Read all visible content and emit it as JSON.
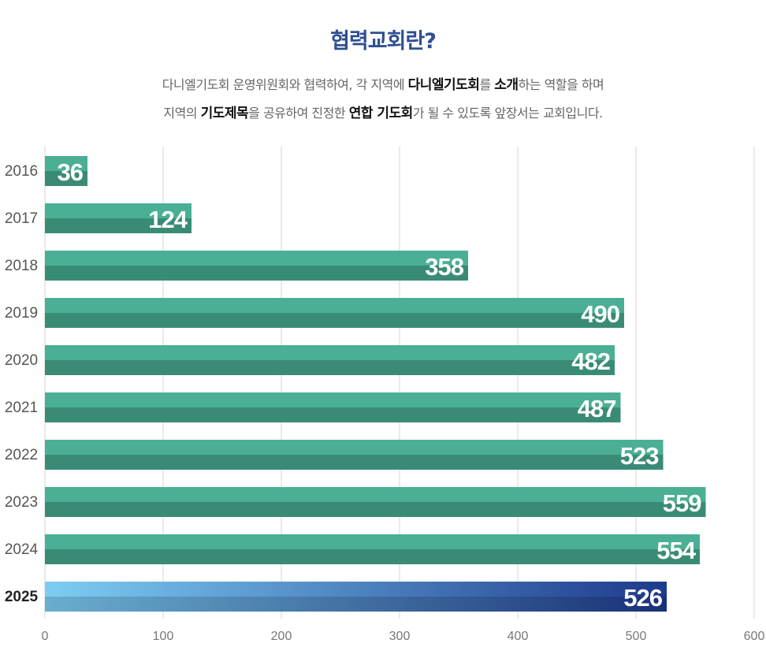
{
  "header": {
    "title": "협력교회란?",
    "line1": {
      "p1": "다니엘기도회 운영위원회와 협력하여, 각 지역에 ",
      "b1": "다니엘기도회",
      "p2": "를 ",
      "b2": "소개",
      "p3": "하는 역할을 하며"
    },
    "line2": {
      "p1": "지역의 ",
      "b1": "기도제목",
      "p2": "을 공유하여 진정한 ",
      "b2": "연합 기도회",
      "p3": "가 될 수 있도록 앞장서는 교회입니다."
    }
  },
  "chart_data": {
    "type": "bar",
    "orientation": "horizontal",
    "categories": [
      "2016",
      "2017",
      "2018",
      "2019",
      "2020",
      "2021",
      "2022",
      "2023",
      "2024",
      "2025"
    ],
    "values": [
      36,
      124,
      358,
      490,
      482,
      487,
      523,
      559,
      554,
      526
    ],
    "xlim": [
      0,
      600
    ],
    "xticks": [
      0,
      100,
      200,
      300,
      400,
      500,
      600
    ],
    "grid": true,
    "highlight_category": "2025",
    "colors": {
      "bar_top": "#4aaf95",
      "bar_bottom": "#3a8b76",
      "highlight_start": "#7dcdf3",
      "highlight_end": "#1e3a8c",
      "grid": "#d6d6d6"
    }
  }
}
